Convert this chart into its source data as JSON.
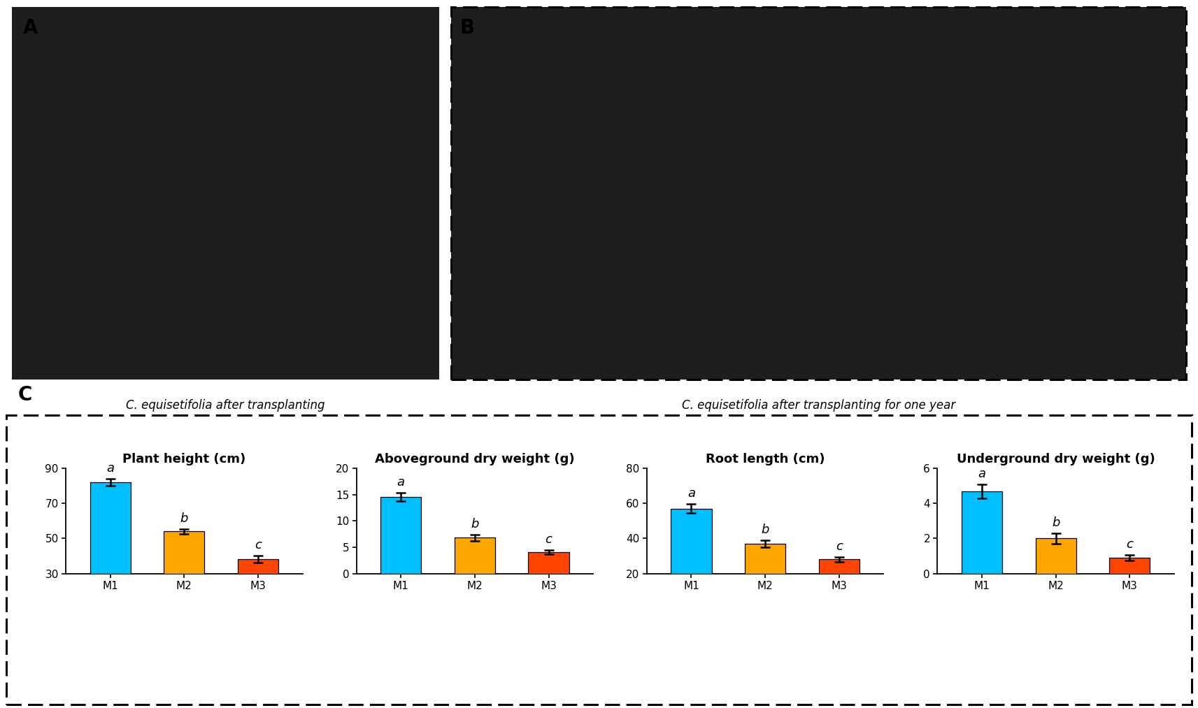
{
  "panel_label_A": "A",
  "panel_label_B": "B",
  "panel_label_C": "C",
  "caption_A": "C. equisetifolia after transplanting",
  "caption_B": "C. equisetifolia after transplanting for one year",
  "charts": [
    {
      "title": "Plant height (cm)",
      "categories": [
        "M1",
        "M2",
        "M3"
      ],
      "values": [
        82.0,
        54.0,
        38.0
      ],
      "errors": [
        2.0,
        1.5,
        2.0
      ],
      "ylim": [
        30,
        90
      ],
      "yticks": [
        30,
        50,
        70,
        90
      ],
      "letters": [
        "a",
        "b",
        "c"
      ],
      "bar_colors": [
        "#00BFFF",
        "#FFA500",
        "#FF4500"
      ]
    },
    {
      "title": "Aboveground dry weight (g)",
      "categories": [
        "M1",
        "M2",
        "M3"
      ],
      "values": [
        14.5,
        6.8,
        4.0
      ],
      "errors": [
        0.8,
        0.6,
        0.4
      ],
      "ylim": [
        0,
        20
      ],
      "yticks": [
        0,
        5,
        10,
        15,
        20
      ],
      "letters": [
        "a",
        "b",
        "c"
      ],
      "bar_colors": [
        "#00BFFF",
        "#FFA500",
        "#FF4500"
      ]
    },
    {
      "title": "Root length (cm)",
      "categories": [
        "M1",
        "M2",
        "M3"
      ],
      "values": [
        57.0,
        37.0,
        28.0
      ],
      "errors": [
        2.5,
        2.0,
        1.5
      ],
      "ylim": [
        20,
        80
      ],
      "yticks": [
        20,
        40,
        60,
        80
      ],
      "letters": [
        "a",
        "b",
        "c"
      ],
      "bar_colors": [
        "#00BFFF",
        "#FFA500",
        "#FF4500"
      ]
    },
    {
      "title": "Underground dry weight (g)",
      "categories": [
        "M1",
        "M2",
        "M3"
      ],
      "values": [
        4.7,
        2.0,
        0.9
      ],
      "errors": [
        0.4,
        0.3,
        0.15
      ],
      "ylim": [
        0,
        6
      ],
      "yticks": [
        0,
        2,
        4,
        6
      ],
      "letters": [
        "a",
        "b",
        "c"
      ],
      "bar_colors": [
        "#00BFFF",
        "#FFA500",
        "#FF4500"
      ]
    }
  ],
  "bg_color": "#ffffff",
  "bar_width": 0.55,
  "title_fontsize": 13,
  "tick_fontsize": 11,
  "letter_fontsize": 13,
  "photo_bg": "#1e1e1e"
}
